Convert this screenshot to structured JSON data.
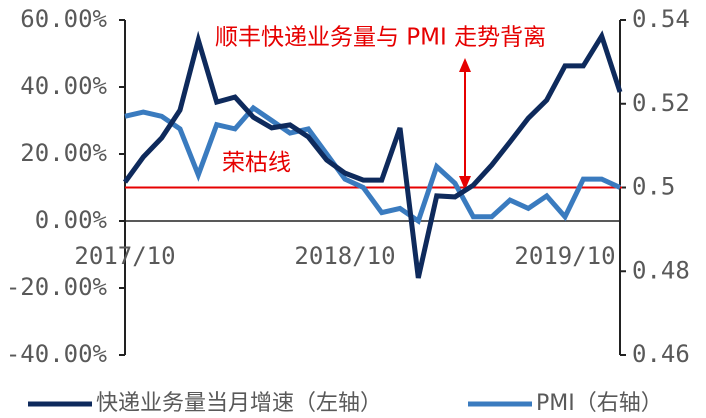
{
  "chart_data": {
    "type": "line",
    "annotations": [
      "顺丰快递业务量与 PMI 走势背离"
    ],
    "categories": [
      "2017/10",
      null,
      null,
      null,
      null,
      null,
      null,
      null,
      null,
      null,
      null,
      null,
      "2018/10",
      null,
      null,
      null,
      null,
      null,
      null,
      null,
      null,
      null,
      null,
      null,
      "2019/10",
      null,
      null,
      null
    ],
    "series": [
      {
        "name": "快递业务量当月增速（左轴）",
        "color": "#0e2a5c",
        "axis": "y",
        "values": [
          11.6,
          19.1,
          24.8,
          33.1,
          54.0,
          35.5,
          37.0,
          31.0,
          27.8,
          28.7,
          25.1,
          18.2,
          14.3,
          12.2,
          12.2,
          27.8,
          -17.0,
          7.5,
          7.2,
          10.7,
          16.7,
          23.6,
          30.7,
          36.1,
          46.3,
          46.3,
          55.2,
          38.5
        ]
      },
      {
        "name": "PMI（右轴）",
        "color": "#3a7bbf",
        "axis": "y2",
        "values": [
          0.517,
          0.518,
          0.517,
          0.514,
          0.503,
          0.515,
          0.514,
          0.519,
          0.516,
          0.513,
          0.514,
          0.508,
          0.502,
          0.5,
          0.494,
          0.495,
          0.492,
          0.505,
          0.501,
          0.493,
          0.493,
          0.497,
          0.495,
          0.498,
          0.493,
          0.502,
          0.502,
          0.5
        ]
      }
    ],
    "ylim": [
      -40,
      60
    ],
    "yticks": [
      {
        "value": -40,
        "label": "-40.00%"
      },
      {
        "value": -20,
        "label": "-20.00%"
      },
      {
        "value": 0,
        "label": "0.00%"
      },
      {
        "value": 20,
        "label": "20.00%"
      },
      {
        "value": 40,
        "label": "40.00%"
      },
      {
        "value": 60,
        "label": "60.00%"
      }
    ],
    "y2lim": [
      0.46,
      0.54
    ],
    "y2ticks": [
      0.46,
      0.48,
      0.5,
      0.52,
      0.54
    ],
    "reference_line": {
      "axis": "y2",
      "value": 0.5,
      "label": "荣枯线",
      "color": "#e60000"
    },
    "grid": false,
    "legend": "bottom"
  }
}
